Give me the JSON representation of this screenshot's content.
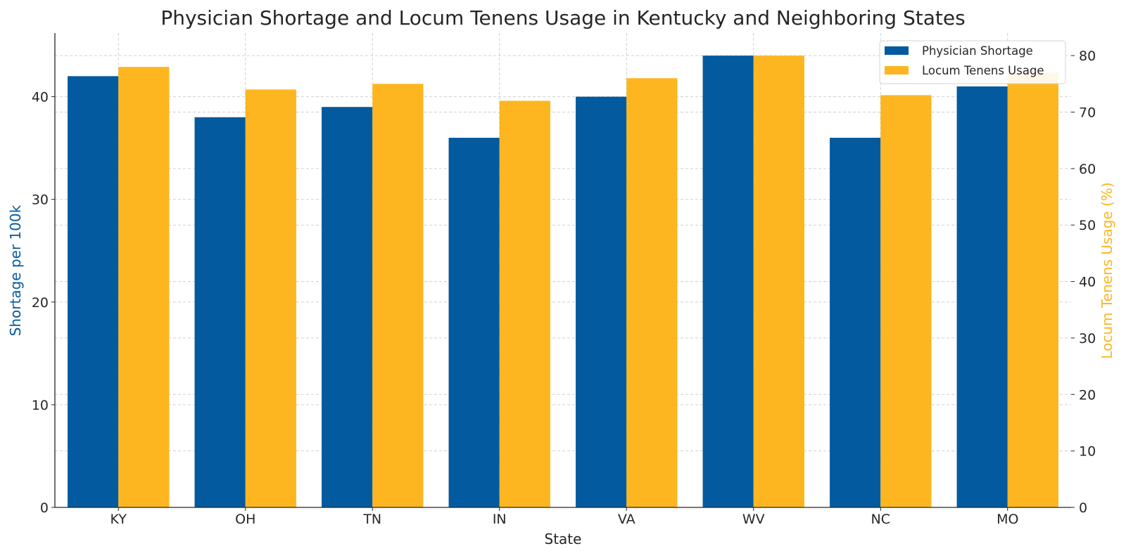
{
  "chart_data": {
    "type": "bar",
    "title": "Physician Shortage and Locum Tenens Usage in Kentucky and Neighboring States",
    "xlabel": "State",
    "ylabel": "Shortage per 100k",
    "ylabel_right": "Locum Tenens Usage (%)",
    "categories": [
      "KY",
      "OH",
      "TN",
      "IN",
      "VA",
      "WV",
      "NC",
      "MO"
    ],
    "series": [
      {
        "name": "Physician Shortage",
        "axis": "left",
        "color": "#045a9e",
        "values": [
          42,
          38,
          39,
          36,
          40,
          44,
          36,
          41
        ]
      },
      {
        "name": "Locum Tenens Usage",
        "axis": "right",
        "color": "#fdb620",
        "values": [
          78,
          74,
          75,
          72,
          76,
          80,
          73,
          77
        ]
      }
    ],
    "ylim": [
      0,
      46.2
    ],
    "ylim_right": [
      0,
      84
    ],
    "yticks": [
      0,
      10,
      20,
      30,
      40
    ],
    "yticks_right": [
      0,
      10,
      20,
      30,
      40,
      50,
      60,
      70,
      80
    ],
    "grid": true,
    "legend_position": "top-right",
    "ylabel_color": "#045a9e",
    "ylabel_right_color": "#fdb620"
  }
}
